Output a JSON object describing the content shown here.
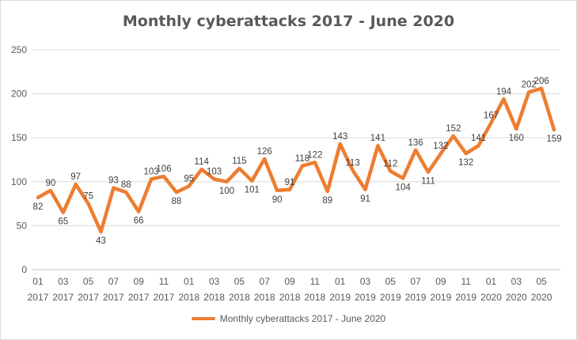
{
  "chart_data": {
    "type": "line",
    "title": "Monthly cyberattacks 2017 - June 2020",
    "xlabel": "",
    "ylabel": "",
    "ylim": [
      0,
      250
    ],
    "yticks": [
      0,
      50,
      100,
      150,
      200,
      250
    ],
    "grid": true,
    "legend_position": "bottom",
    "line_color": "#ED7D31",
    "categories": [
      "01 2017",
      "02 2017",
      "03 2017",
      "04 2017",
      "05 2017",
      "06 2017",
      "07 2017",
      "08 2017",
      "09 2017",
      "10 2017",
      "11 2017",
      "12 2017",
      "01 2018",
      "02 2018",
      "03 2018",
      "04 2018",
      "05 2018",
      "06 2018",
      "07 2018",
      "08 2018",
      "09 2018",
      "10 2018",
      "11 2018",
      "12 2018",
      "01 2019",
      "02 2019",
      "03 2019",
      "04 2019",
      "05 2019",
      "06 2019",
      "07 2019",
      "08 2019",
      "09 2019",
      "10 2019",
      "11 2019",
      "12 2019",
      "01 2020",
      "02 2020",
      "03 2020",
      "04 2020",
      "05 2020",
      "06 2020"
    ],
    "tick_labels": [
      [
        "01",
        "2017"
      ],
      [
        "03",
        "2017"
      ],
      [
        "05",
        "2017"
      ],
      [
        "07",
        "2017"
      ],
      [
        "09",
        "2017"
      ],
      [
        "11",
        "2017"
      ],
      [
        "01",
        "2018"
      ],
      [
        "03",
        "2018"
      ],
      [
        "05",
        "2018"
      ],
      [
        "07",
        "2018"
      ],
      [
        "09",
        "2018"
      ],
      [
        "11",
        "2018"
      ],
      [
        "01",
        "2019"
      ],
      [
        "03",
        "2019"
      ],
      [
        "05",
        "2019"
      ],
      [
        "07",
        "2019"
      ],
      [
        "09",
        "2019"
      ],
      [
        "11",
        "2019"
      ],
      [
        "01",
        "2020"
      ],
      [
        "03",
        "2020"
      ],
      [
        "05",
        "2020"
      ]
    ],
    "series": [
      {
        "name": "Monthly cyberattacks 2017 - June 2020",
        "values": [
          82,
          90,
          65,
          97,
          75,
          43,
          93,
          88,
          66,
          103,
          106,
          88,
          95,
          114,
          103,
          100,
          115,
          101,
          126,
          90,
          91,
          118,
          122,
          89,
          143,
          113,
          91,
          141,
          112,
          104,
          136,
          111,
          132,
          152,
          132,
          141,
          167,
          194,
          160,
          202,
          206,
          159
        ]
      }
    ]
  }
}
